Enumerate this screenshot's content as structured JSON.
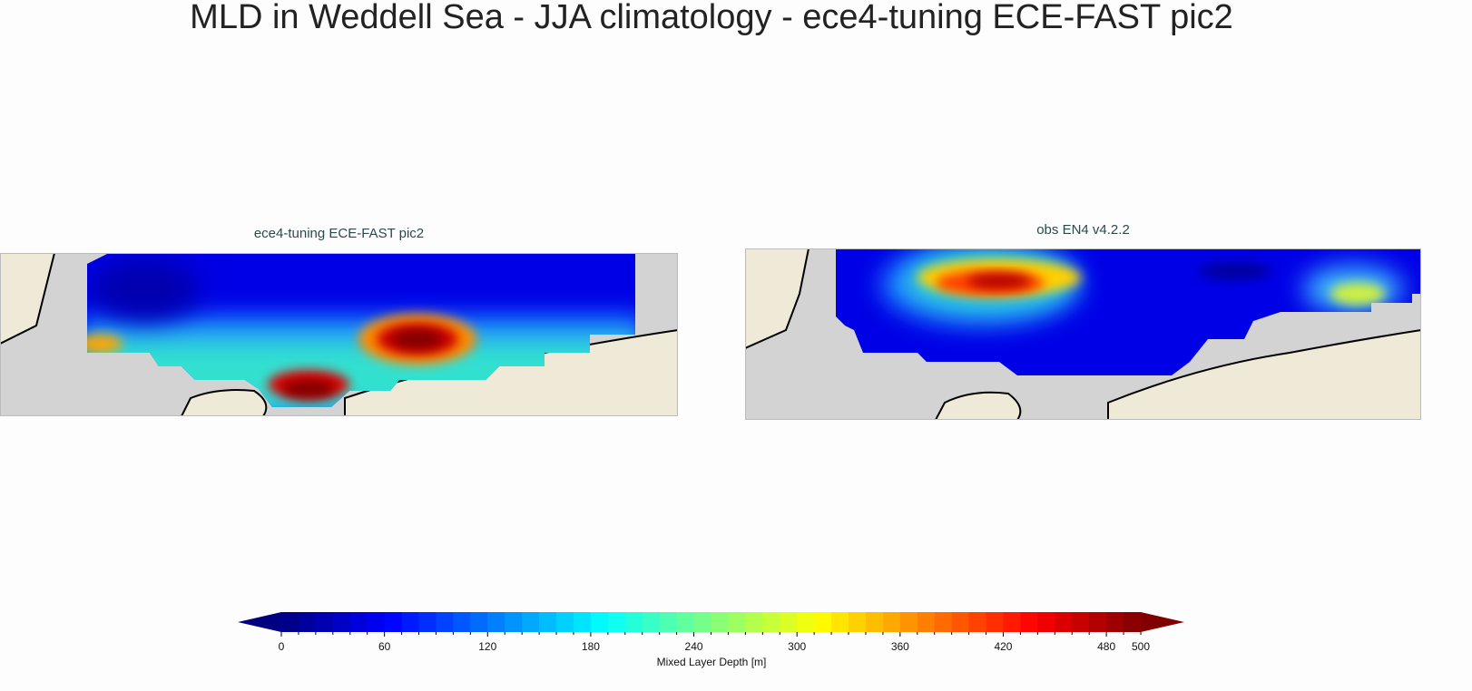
{
  "figure": {
    "title": "MLD in Weddell Sea - JJA climatology - ece4-tuning ECE-FAST pic2",
    "panels": [
      {
        "title": "ece4-tuning ECE-FAST pic2"
      },
      {
        "title": "obs EN4 v4.2.2"
      }
    ],
    "colors": {
      "land": "#efe9d8",
      "masked": "#d3d3d3",
      "coastline": "#000000"
    }
  },
  "chart_data": {
    "type": "heatmap",
    "colormap": "jet",
    "colorbar": {
      "label": "Mixed Layer Depth [m]",
      "range": [
        0,
        500
      ],
      "step": 10,
      "extend": "both",
      "tick_labels": [
        "0",
        "60",
        "120",
        "180",
        "240",
        "300",
        "360",
        "420",
        "480",
        "500"
      ],
      "tick_values": [
        0,
        60,
        120,
        180,
        240,
        300,
        360,
        420,
        480,
        500
      ]
    }
  }
}
